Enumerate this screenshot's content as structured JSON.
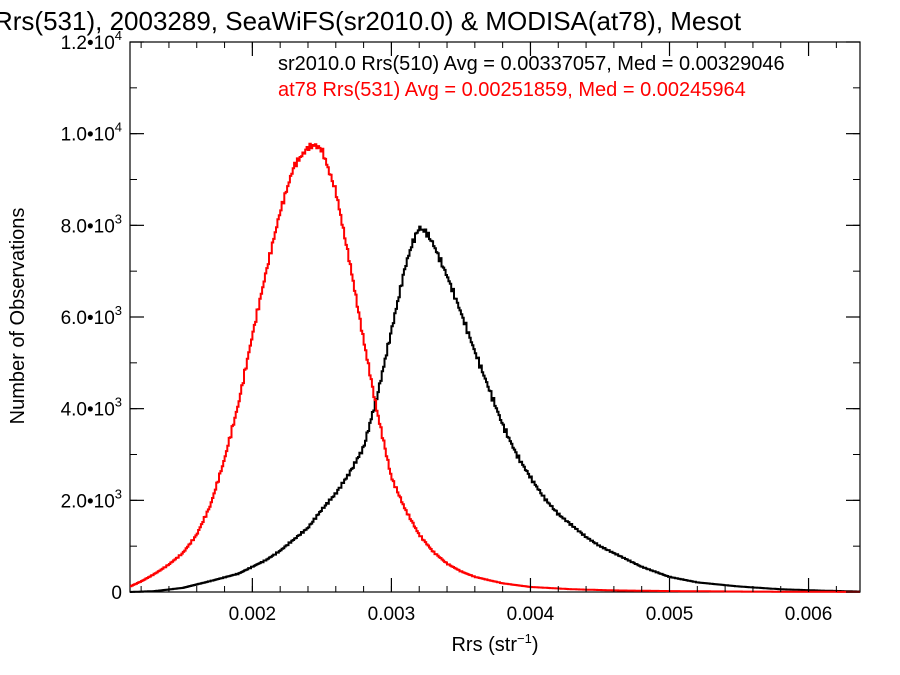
{
  "chart_data": {
    "type": "line",
    "style": "histogram-step",
    "title": "Rrs(531), 2003289, SeaWiFS(sr2010.0) & MODISA(at78), Mesot",
    "xlabel": "Rrs (str",
    "xlabel_sup": "−1",
    "xlabel_tail": ")",
    "ylabel": "Number of Observations",
    "xlim": [
      0.00112,
      0.00637
    ],
    "ylim": [
      0,
      12000
    ],
    "grid": false,
    "x_ticks": [
      {
        "value": 0.002,
        "label": "0.002"
      },
      {
        "value": 0.003,
        "label": "0.003"
      },
      {
        "value": 0.004,
        "label": "0.004"
      },
      {
        "value": 0.005,
        "label": "0.005"
      },
      {
        "value": 0.006,
        "label": "0.006"
      }
    ],
    "y_ticks": [
      {
        "value": 0,
        "label": "0",
        "exp": ""
      },
      {
        "value": 2000,
        "label": "2.0•10",
        "exp": "3"
      },
      {
        "value": 4000,
        "label": "4.0•10",
        "exp": "3"
      },
      {
        "value": 6000,
        "label": "6.0•10",
        "exp": "3"
      },
      {
        "value": 8000,
        "label": "8.0•10",
        "exp": "3"
      },
      {
        "value": 10000,
        "label": "1.0•10",
        "exp": "4"
      },
      {
        "value": 12000,
        "label": "1.2•10",
        "exp": "4"
      }
    ],
    "annotations": [
      {
        "text": "sr2010.0 Rrs(510) Avg = 0.00337057, Med = 0.00329046",
        "color": "#000000"
      },
      {
        "text": "at78 Rrs(531) Avg = 0.00251859, Med = 0.00245964",
        "color": "#ff0000"
      }
    ],
    "series": [
      {
        "color": "#000000",
        "x": [
          0.00112,
          0.0013,
          0.0015,
          0.0017,
          0.0019,
          0.0021,
          0.0022,
          0.0023,
          0.0024,
          0.0025,
          0.0026,
          0.0027,
          0.0028,
          0.0029,
          0.003,
          0.0031,
          0.00315,
          0.0032,
          0.00325,
          0.0033,
          0.0034,
          0.0035,
          0.0036,
          0.0037,
          0.0038,
          0.0039,
          0.004,
          0.0041,
          0.0042,
          0.0043,
          0.0044,
          0.0045,
          0.0046,
          0.0047,
          0.0048,
          0.005,
          0.0052,
          0.0055,
          0.0058,
          0.0061,
          0.00637
        ],
        "values": [
          0,
          20,
          90,
          240,
          400,
          700,
          900,
          1150,
          1400,
          1800,
          2150,
          2600,
          3150,
          4300,
          5700,
          7100,
          7600,
          7950,
          7850,
          7600,
          6900,
          6100,
          5250,
          4450,
          3650,
          3000,
          2500,
          2050,
          1700,
          1450,
          1200,
          1000,
          850,
          700,
          550,
          330,
          210,
          120,
          60,
          30,
          10
        ]
      },
      {
        "color": "#ff0000",
        "x": [
          0.00112,
          0.0012,
          0.0013,
          0.0014,
          0.0015,
          0.0016,
          0.0017,
          0.0018,
          0.0019,
          0.002,
          0.0021,
          0.0022,
          0.0023,
          0.0024,
          0.00245,
          0.0025,
          0.0026,
          0.0027,
          0.0028,
          0.0029,
          0.003,
          0.0031,
          0.0032,
          0.0033,
          0.0034,
          0.0035,
          0.0036,
          0.0038,
          0.004,
          0.0043,
          0.0046,
          0.005,
          0.0055,
          0.006,
          0.00637
        ],
        "values": [
          120,
          230,
          400,
          600,
          850,
          1250,
          1900,
          2900,
          4100,
          5600,
          7000,
          8300,
          9300,
          9700,
          9750,
          9650,
          8750,
          7200,
          5500,
          3900,
          2500,
          1800,
          1250,
          880,
          620,
          450,
          330,
          190,
          110,
          60,
          35,
          20,
          10,
          5,
          2
        ]
      }
    ]
  }
}
